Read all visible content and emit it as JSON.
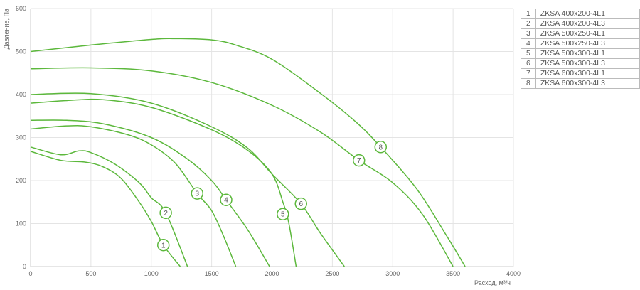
{
  "chart_data": {
    "type": "line",
    "title": "",
    "xlabel": "Расход, м³/ч",
    "ylabel": "Давление, Па",
    "xlim": [
      0,
      4000
    ],
    "ylim": [
      0,
      600
    ],
    "xticks": [
      0,
      500,
      1000,
      1500,
      2000,
      2500,
      3000,
      3500,
      4000
    ],
    "yticks": [
      0,
      100,
      200,
      300,
      400,
      500,
      600
    ],
    "grid": true,
    "line_color": "#5cb83c",
    "legend_placement": "right",
    "series": [
      {
        "name": "ZKSA 400x200-4L1",
        "number": "1",
        "label_at": [
          1100,
          50
        ],
        "points": [
          [
            0,
            268
          ],
          [
            250,
            247
          ],
          [
            450,
            243
          ],
          [
            600,
            232
          ],
          [
            750,
            205
          ],
          [
            900,
            150
          ],
          [
            1000,
            105
          ],
          [
            1100,
            50
          ],
          [
            1240,
            0
          ]
        ]
      },
      {
        "name": "ZKSA 400x200-4L3",
        "number": "2",
        "label_at": [
          1120,
          125
        ],
        "points": [
          [
            0,
            278
          ],
          [
            250,
            260
          ],
          [
            400,
            269
          ],
          [
            500,
            265
          ],
          [
            700,
            238
          ],
          [
            900,
            195
          ],
          [
            1000,
            160
          ],
          [
            1120,
            125
          ],
          [
            1300,
            0
          ]
        ]
      },
      {
        "name": "ZKSA 500x250-4L1",
        "number": "3",
        "label_at": [
          1380,
          170
        ],
        "points": [
          [
            0,
            320
          ],
          [
            300,
            327
          ],
          [
            500,
            325
          ],
          [
            800,
            307
          ],
          [
            1000,
            283
          ],
          [
            1200,
            240
          ],
          [
            1380,
            170
          ],
          [
            1500,
            130
          ],
          [
            1600,
            70
          ],
          [
            1700,
            0
          ]
        ]
      },
      {
        "name": "ZKSA 500x250-4L3",
        "number": "4",
        "label_at": [
          1620,
          155
        ],
        "points": [
          [
            0,
            340
          ],
          [
            300,
            340
          ],
          [
            600,
            332
          ],
          [
            1000,
            300
          ],
          [
            1300,
            250
          ],
          [
            1500,
            200
          ],
          [
            1620,
            155
          ],
          [
            1800,
            85
          ],
          [
            1980,
            0
          ]
        ]
      },
      {
        "name": "ZKSA 500x300-4L1",
        "number": "5",
        "label_at": [
          2090,
          122
        ],
        "points": [
          [
            0,
            380
          ],
          [
            300,
            386
          ],
          [
            600,
            388
          ],
          [
            1000,
            370
          ],
          [
            1500,
            318
          ],
          [
            1800,
            270
          ],
          [
            2000,
            215
          ],
          [
            2090,
            150
          ],
          [
            2140,
            100
          ],
          [
            2200,
            0
          ]
        ]
      },
      {
        "name": "ZKSA 500x300-4L3",
        "number": "6",
        "label_at": [
          2240,
          146
        ],
        "points": [
          [
            0,
            400
          ],
          [
            500,
            402
          ],
          [
            1000,
            380
          ],
          [
            1500,
            325
          ],
          [
            1800,
            275
          ],
          [
            2000,
            215
          ],
          [
            2240,
            146
          ],
          [
            2400,
            78
          ],
          [
            2600,
            0
          ]
        ]
      },
      {
        "name": "ZKSA 600x300-4L1",
        "number": "7",
        "label_at": [
          2720,
          247
        ],
        "points": [
          [
            0,
            460
          ],
          [
            500,
            462
          ],
          [
            1000,
            455
          ],
          [
            1500,
            428
          ],
          [
            2000,
            375
          ],
          [
            2400,
            313
          ],
          [
            2720,
            247
          ],
          [
            3000,
            195
          ],
          [
            3250,
            120
          ],
          [
            3500,
            0
          ]
        ]
      },
      {
        "name": "ZKSA 600x300-4L3",
        "number": "8",
        "label_at": [
          2900,
          278
        ],
        "points": [
          [
            0,
            500
          ],
          [
            500,
            515
          ],
          [
            1000,
            528
          ],
          [
            1200,
            530
          ],
          [
            1500,
            527
          ],
          [
            1700,
            515
          ],
          [
            2000,
            482
          ],
          [
            2400,
            403
          ],
          [
            2700,
            335
          ],
          [
            2900,
            278
          ],
          [
            3200,
            180
          ],
          [
            3450,
            70
          ],
          [
            3600,
            0
          ]
        ]
      }
    ]
  }
}
